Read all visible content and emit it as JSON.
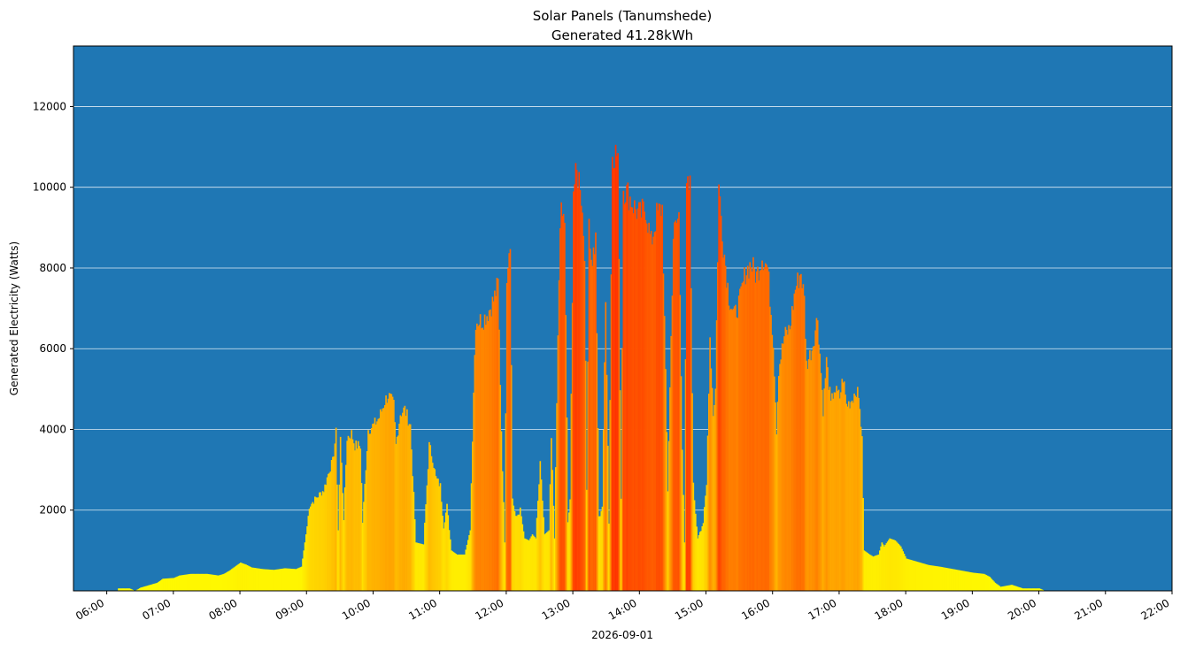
{
  "chart_data": {
    "type": "bar",
    "title": "Solar Panels (Tanumshede)",
    "subtitle": "Generated 41.28kWh",
    "xlabel": "2026-09-01",
    "ylabel": "Generated Electricity (Watts)",
    "x_unit": "time of day",
    "xlim": [
      "05:30",
      "22:00"
    ],
    "ylim": [
      0,
      13500
    ],
    "y_ticks": [
      2000,
      4000,
      6000,
      8000,
      10000,
      12000
    ],
    "x_ticks": [
      "06:00",
      "07:00",
      "08:00",
      "09:00",
      "10:00",
      "11:00",
      "12:00",
      "13:00",
      "14:00",
      "15:00",
      "16:00",
      "17:00",
      "18:00",
      "19:00",
      "20:00",
      "21:00",
      "22:00"
    ],
    "grid": "horizontal",
    "background_color": "#1f77b4",
    "grid_color": "#ffffff",
    "color_scale": [
      "#ffff00",
      "#ff3300"
    ],
    "color_domain": [
      0,
      11000
    ],
    "values_description": "generated power in watts, one reading per minute",
    "series": [
      {
        "points": [
          [
            "06:10",
            60
          ],
          [
            "06:20",
            60
          ],
          [
            "06:25",
            0
          ],
          [
            "06:30",
            80
          ],
          [
            "06:35",
            120
          ],
          [
            "06:45",
            200
          ],
          [
            "06:50",
            300
          ],
          [
            "07:00",
            320
          ],
          [
            "07:05",
            380
          ],
          [
            "07:15",
            420
          ],
          [
            "07:30",
            420
          ],
          [
            "07:40",
            380
          ],
          [
            "07:45",
            420
          ],
          [
            "07:50",
            500
          ],
          [
            "07:55",
            600
          ],
          [
            "08:00",
            700
          ],
          [
            "08:05",
            650
          ],
          [
            "08:10",
            580
          ],
          [
            "08:20",
            540
          ],
          [
            "08:30",
            520
          ],
          [
            "08:40",
            560
          ],
          [
            "08:50",
            540
          ],
          [
            "08:55",
            600
          ],
          [
            "09:00",
            1600
          ],
          [
            "09:02",
            2100
          ],
          [
            "09:08",
            2300
          ],
          [
            "09:15",
            2500
          ],
          [
            "09:20",
            3000
          ],
          [
            "09:23",
            3200
          ],
          [
            "09:26",
            3900
          ],
          [
            "09:28",
            1500
          ],
          [
            "09:30",
            3800
          ],
          [
            "09:33",
            1800
          ],
          [
            "09:36",
            3800
          ],
          [
            "09:40",
            3900
          ],
          [
            "09:43",
            3600
          ],
          [
            "09:48",
            3600
          ],
          [
            "09:50",
            1700
          ],
          [
            "09:55",
            4000
          ],
          [
            "10:00",
            4100
          ],
          [
            "10:05",
            4300
          ],
          [
            "10:10",
            4700
          ],
          [
            "10:13",
            4850
          ],
          [
            "10:18",
            4600
          ],
          [
            "10:20",
            3600
          ],
          [
            "10:24",
            4400
          ],
          [
            "10:28",
            4500
          ],
          [
            "10:33",
            4100
          ],
          [
            "10:38",
            1200
          ],
          [
            "10:45",
            1150
          ],
          [
            "10:50",
            3600
          ],
          [
            "10:53",
            3300
          ],
          [
            "10:56",
            2800
          ],
          [
            "11:00",
            2600
          ],
          [
            "11:03",
            1600
          ],
          [
            "11:06",
            2100
          ],
          [
            "11:10",
            1000
          ],
          [
            "11:15",
            900
          ],
          [
            "11:22",
            900
          ],
          [
            "11:27",
            1500
          ],
          [
            "11:30",
            5000
          ],
          [
            "11:32",
            6700
          ],
          [
            "11:38",
            6700
          ],
          [
            "11:43",
            6900
          ],
          [
            "11:48",
            7200
          ],
          [
            "11:52",
            7600
          ],
          [
            "11:55",
            4000
          ],
          [
            "11:58",
            1200
          ],
          [
            "12:00",
            7900
          ],
          [
            "12:03",
            8800
          ],
          [
            "12:05",
            2300
          ],
          [
            "12:08",
            1800
          ],
          [
            "12:12",
            2000
          ],
          [
            "12:16",
            1300
          ],
          [
            "12:20",
            1250
          ],
          [
            "12:23",
            1400
          ],
          [
            "12:26",
            1300
          ],
          [
            "12:30",
            3100
          ],
          [
            "12:34",
            1400
          ],
          [
            "12:38",
            1500
          ],
          [
            "12:40",
            3700
          ],
          [
            "12:43",
            1300
          ],
          [
            "12:45",
            4600
          ],
          [
            "12:48",
            9300
          ],
          [
            "12:52",
            9200
          ],
          [
            "12:55",
            1700
          ],
          [
            "12:57",
            2200
          ],
          [
            "13:00",
            10000
          ],
          [
            "13:03",
            10300
          ],
          [
            "13:06",
            10200
          ],
          [
            "13:10",
            8500
          ],
          [
            "13:12",
            2500
          ],
          [
            "13:14",
            9300
          ],
          [
            "13:16",
            8100
          ],
          [
            "13:20",
            8600
          ],
          [
            "13:23",
            1800
          ],
          [
            "13:26",
            2100
          ],
          [
            "13:29",
            7400
          ],
          [
            "13:32",
            1700
          ],
          [
            "13:35",
            10900
          ],
          [
            "13:40",
            10800
          ],
          [
            "13:43",
            2300
          ],
          [
            "13:45",
            10000
          ],
          [
            "13:50",
            9800
          ],
          [
            "13:55",
            9500
          ],
          [
            "14:00",
            9300
          ],
          [
            "14:05",
            9500
          ],
          [
            "14:10",
            8600
          ],
          [
            "14:15",
            9300
          ],
          [
            "14:20",
            9500
          ],
          [
            "14:25",
            2500
          ],
          [
            "14:30",
            8800
          ],
          [
            "14:35",
            9300
          ],
          [
            "14:38",
            3600
          ],
          [
            "14:40",
            1200
          ],
          [
            "14:42",
            9900
          ],
          [
            "14:45",
            10000
          ],
          [
            "14:48",
            2600
          ],
          [
            "14:52",
            1300
          ],
          [
            "14:57",
            1700
          ],
          [
            "15:00",
            2600
          ],
          [
            "15:03",
            6300
          ],
          [
            "15:06",
            4400
          ],
          [
            "15:08",
            5000
          ],
          [
            "15:11",
            10000
          ],
          [
            "15:15",
            8600
          ],
          [
            "15:20",
            7300
          ],
          [
            "15:25",
            6800
          ],
          [
            "15:30",
            7200
          ],
          [
            "15:35",
            7900
          ],
          [
            "15:40",
            8100
          ],
          [
            "15:45",
            7800
          ],
          [
            "15:50",
            8300
          ],
          [
            "15:55",
            8000
          ],
          [
            "16:00",
            6200
          ],
          [
            "16:03",
            4000
          ],
          [
            "16:05",
            5500
          ],
          [
            "16:10",
            6300
          ],
          [
            "16:15",
            6500
          ],
          [
            "16:20",
            7500
          ],
          [
            "16:25",
            7900
          ],
          [
            "16:28",
            7200
          ],
          [
            "16:30",
            5600
          ],
          [
            "16:35",
            6000
          ],
          [
            "16:40",
            6800
          ],
          [
            "16:45",
            4500
          ],
          [
            "16:48",
            5700
          ],
          [
            "16:52",
            4600
          ],
          [
            "16:55",
            5000
          ],
          [
            "17:00",
            4800
          ],
          [
            "17:03",
            5300
          ],
          [
            "17:06",
            4600
          ],
          [
            "17:10",
            4700
          ],
          [
            "17:15",
            5000
          ],
          [
            "17:18",
            4600
          ],
          [
            "17:20",
            3700
          ],
          [
            "17:22",
            1000
          ],
          [
            "17:27",
            900
          ],
          [
            "17:30",
            850
          ],
          [
            "17:35",
            900
          ],
          [
            "17:38",
            1200
          ],
          [
            "17:40",
            1100
          ],
          [
            "17:45",
            1300
          ],
          [
            "17:50",
            1250
          ],
          [
            "17:55",
            1100
          ],
          [
            "18:00",
            800
          ],
          [
            "18:10",
            720
          ],
          [
            "18:20",
            640
          ],
          [
            "18:30",
            600
          ],
          [
            "18:40",
            550
          ],
          [
            "18:50",
            500
          ],
          [
            "19:00",
            450
          ],
          [
            "19:10",
            420
          ],
          [
            "19:15",
            350
          ],
          [
            "19:20",
            200
          ],
          [
            "19:25",
            100
          ],
          [
            "19:35",
            150
          ],
          [
            "19:45",
            60
          ],
          [
            "20:00",
            60
          ],
          [
            "20:05",
            0
          ]
        ]
      }
    ]
  }
}
